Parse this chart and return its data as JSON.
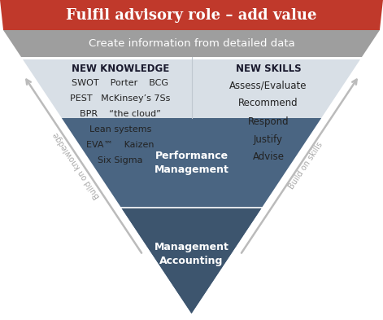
{
  "title": "Fulfil advisory role – add value",
  "subtitle": "Create information from detailed data",
  "title_bg": "#c0392b",
  "subtitle_bg": "#9e9e9e",
  "light_gray": "#d8dfe6",
  "mid_gray": "#c8d0d8",
  "dark_blue": "#4a6582",
  "darker_blue": "#3d556e",
  "arrow_color": "#bbbbbb",
  "new_knowledge_label": "NEW KNOWLEDGE",
  "new_skills_label": "NEW SKILLS",
  "knowledge_items": [
    [
      "SWOT",
      "Porter",
      "BCG"
    ],
    [
      "PEST",
      "McKinsey’s 7Ss"
    ],
    [
      "BPR",
      "“the cloud”"
    ],
    [
      "Lean systems"
    ],
    [
      "EVA™",
      "Kaizen"
    ],
    [
      "Six Sigma"
    ]
  ],
  "skills_items": [
    "Assess/Evaluate",
    "Recommend",
    "Respond",
    "Justify",
    "Advise"
  ],
  "bottom_label1": "Performance\nManagement",
  "bottom_label2": "Management\nAccounting",
  "left_arrow_label": "Build on knowledge",
  "right_arrow_label": "Build on skills",
  "fig_w": 4.71,
  "fig_h": 3.93,
  "dpi": 100
}
